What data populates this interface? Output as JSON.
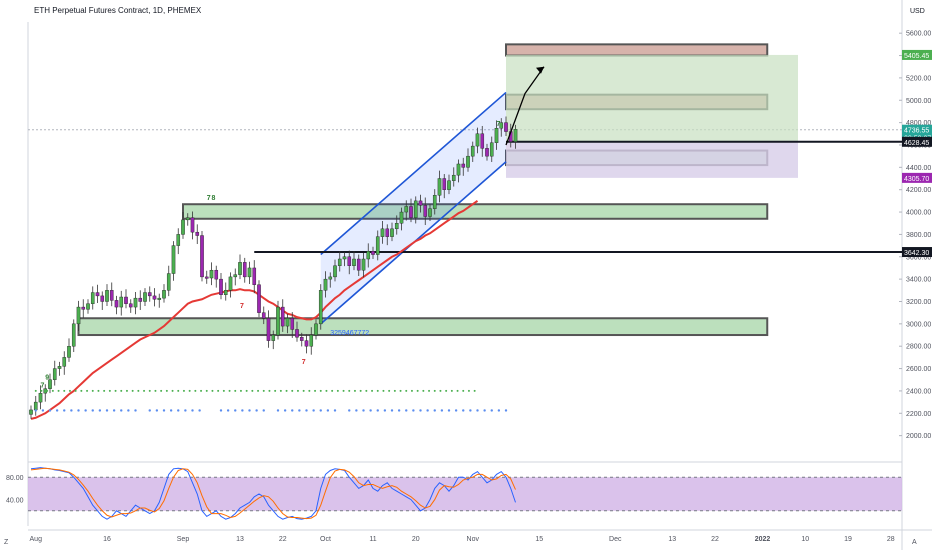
{
  "header": {
    "title": "ETH Perpetual Futures Contract, 1D, PHEMEX",
    "unit": "USD",
    "corner_left": "Z",
    "corner_right": "A"
  },
  "colors": {
    "bull": "#4caf50",
    "bear": "#9c27b0",
    "ma": "#e53935",
    "channel": "#1e56d6",
    "zone_green": "#a5d6a7",
    "zone_red": "#c99a8f",
    "target_fill": "#c8e0c0",
    "stop_fill": "#d7cde8",
    "stoch_band": "#d1b3e6",
    "stoch_k": "#2962ff",
    "stoch_d": "#ff6d00",
    "price_tag": "#26a69a",
    "black_tag": "#131722",
    "purple_tag": "#9c27b0"
  },
  "chart_data": {
    "type": "candlestick",
    "title": "ETH Perpetual Futures Contract, 1D, PHEMEX",
    "y_unit": "USD",
    "ylim": [
      1800,
      5700
    ],
    "y_ticks": [
      2000,
      2200,
      2400,
      2600,
      2800,
      3000,
      3200,
      3400,
      3600,
      3800,
      4000,
      4200,
      4400,
      4600,
      4800,
      5000,
      5200,
      5400,
      5600
    ],
    "y_tick_labels": [
      "2000.00",
      "2200.00",
      "2400.00",
      "2600.00",
      "2800.00",
      "3000.00",
      "3200.00",
      "3400.00",
      "3600.00",
      "3800.00",
      "4000.00",
      "4200.00",
      "4400.00",
      "4600.00",
      "4800.00",
      "5000.00",
      "5200.00",
      "5400.00",
      "5600.00"
    ],
    "x_ticks": [
      {
        "label": "Aug",
        "day": 1
      },
      {
        "label": "16",
        "day": 16
      },
      {
        "label": "Sep",
        "day": 32
      },
      {
        "label": "13",
        "day": 44
      },
      {
        "label": "22",
        "day": 53
      },
      {
        "label": "Oct",
        "day": 62
      },
      {
        "label": "11",
        "day": 72
      },
      {
        "label": "20",
        "day": 81
      },
      {
        "label": "Nov",
        "day": 93
      },
      {
        "label": "15",
        "day": 107
      },
      {
        "label": "Dec",
        "day": 123
      },
      {
        "label": "13",
        "day": 135
      },
      {
        "label": "22",
        "day": 144
      },
      {
        "label": "2022",
        "day": 154
      },
      {
        "label": "10",
        "day": 163
      },
      {
        "label": "19",
        "day": 172
      },
      {
        "label": "28",
        "day": 181
      }
    ],
    "candles_close": [
      2230,
      2300,
      2380,
      2420,
      2500,
      2600,
      2620,
      2700,
      2800,
      3000,
      3150,
      3130,
      3180,
      3280,
      3250,
      3200,
      3300,
      3210,
      3150,
      3240,
      3180,
      3150,
      3230,
      3200,
      3280,
      3250,
      3220,
      3230,
      3300,
      3450,
      3700,
      3800,
      3930,
      3950,
      3820,
      3790,
      3420,
      3410,
      3480,
      3400,
      3260,
      3300,
      3420,
      3440,
      3550,
      3420,
      3500,
      3350,
      3100,
      3050,
      2850,
      2900,
      3150,
      2980,
      3050,
      2950,
      2880,
      2850,
      2800,
      2900,
      3000,
      3300,
      3400,
      3420,
      3520,
      3580,
      3600,
      3520,
      3580,
      3480,
      3580,
      3650,
      3620,
      3780,
      3850,
      3780,
      3850,
      3900,
      4000,
      4050,
      3950,
      4100,
      4060,
      3960,
      4030,
      4150,
      4300,
      4200,
      4280,
      4330,
      4430,
      4400,
      4500,
      4590,
      4700,
      4570,
      4500,
      4620,
      4750,
      4800,
      4720,
      4630,
      4740
    ],
    "moving_average_start_day": 0,
    "moving_average": [
      2150,
      2160,
      2180,
      2200,
      2230,
      2260,
      2290,
      2330,
      2370,
      2400,
      2440,
      2480,
      2520,
      2560,
      2590,
      2620,
      2650,
      2680,
      2710,
      2740,
      2770,
      2800,
      2830,
      2860,
      2880,
      2900,
      2920,
      2950,
      2980,
      3020,
      3060,
      3100,
      3140,
      3180,
      3200,
      3210,
      3220,
      3240,
      3260,
      3270,
      3280,
      3290,
      3300,
      3300,
      3310,
      3300,
      3300,
      3290,
      3260,
      3230,
      3200,
      3180,
      3150,
      3120,
      3090,
      3080,
      3060,
      3050,
      3040,
      3040,
      3060,
      3100,
      3150,
      3190,
      3230,
      3260,
      3300,
      3330,
      3360,
      3390,
      3420,
      3450,
      3480,
      3510,
      3540,
      3570,
      3600,
      3620,
      3650,
      3680,
      3710,
      3740,
      3760,
      3790,
      3810,
      3840,
      3870,
      3900,
      3930,
      3960,
      3990,
      4010,
      4040,
      4070,
      4100
    ],
    "zones": [
      {
        "kind": "support",
        "from_day": 32,
        "to_day": 155,
        "low": 3940,
        "high": 4070
      },
      {
        "kind": "support",
        "from_day": 10,
        "to_day": 155,
        "low": 2900,
        "high": 3050
      },
      {
        "kind": "resistance",
        "from_day": 100,
        "to_day": 155,
        "low": 4920,
        "high": 5050
      },
      {
        "kind": "resistance",
        "from_day": 100,
        "to_day": 155,
        "low": 5400,
        "high": 5500
      },
      {
        "kind": "pivot",
        "from_day": 100,
        "to_day": 155,
        "low": 4420,
        "high": 4550
      }
    ],
    "horizontal_lines": [
      {
        "price": 4628.45,
        "from_day": 100,
        "label": "4628.45"
      },
      {
        "price": 3642.3,
        "from_day": 47,
        "label": "3642.30"
      }
    ],
    "position_tool": {
      "entry": 4628.45,
      "target": 5405.45,
      "stop": 4305.7
    },
    "price_labels": [
      {
        "value": "5405.45",
        "price": 5405.45,
        "style": "green"
      },
      {
        "value": "4736.55",
        "sub": "08:58:07",
        "price": 4736.55,
        "style": "price"
      },
      {
        "value": "4628.45",
        "price": 4628.45,
        "style": "black"
      },
      {
        "value": "4305.70",
        "price": 4305.7,
        "style": "purple"
      },
      {
        "value": "3642.30",
        "price": 3642.3,
        "style": "black"
      }
    ],
    "channel": {
      "lower": [
        [
          61,
          3000
        ],
        [
          100,
          4450
        ]
      ],
      "upper": [
        [
          61,
          3620
        ],
        [
          100,
          5070
        ]
      ]
    },
    "projection_arrow": [
      [
        100,
        4600
      ],
      [
        104,
        5060
      ],
      [
        108,
        5300
      ]
    ],
    "annotations": [
      {
        "text": "7",
        "day": 37,
        "price": 4110
      },
      {
        "text": "8",
        "day": 38,
        "price": 4110
      },
      {
        "text": "7",
        "day": 98,
        "price": 4770
      },
      {
        "text": "7",
        "day": 44,
        "price": 3140
      },
      {
        "text": "7",
        "day": 57,
        "price": 2640
      },
      {
        "text": "9",
        "day": 3,
        "price": 2500
      },
      {
        "text": "7",
        "day": 2,
        "price": 2430
      }
    ],
    "overlay_text": "3259467772",
    "stochastic": {
      "ylim": [
        0,
        100
      ],
      "y_ticks": [
        80,
        40
      ],
      "y_tick_labels": [
        "80.00",
        "40.00"
      ],
      "band": [
        20,
        80
      ],
      "k": [
        95,
        96,
        97,
        96,
        95,
        93,
        92,
        90,
        88,
        80,
        70,
        60,
        45,
        30,
        20,
        10,
        5,
        10,
        20,
        15,
        10,
        20,
        30,
        25,
        20,
        15,
        20,
        35,
        60,
        85,
        95,
        96,
        95,
        90,
        70,
        50,
        20,
        10,
        15,
        20,
        10,
        5,
        8,
        15,
        25,
        30,
        35,
        45,
        50,
        45,
        30,
        20,
        10,
        5,
        8,
        10,
        6,
        5,
        7,
        10,
        20,
        60,
        85,
        92,
        95,
        94,
        92,
        80,
        70,
        60,
        65,
        75,
        60,
        55,
        65,
        70,
        60,
        55,
        50,
        45,
        40,
        30,
        20,
        25,
        40,
        60,
        70,
        65,
        55,
        65,
        80,
        80,
        75,
        85,
        90,
        80,
        70,
        75,
        85,
        90,
        80,
        60,
        35
      ],
      "d": [
        93,
        94,
        95,
        96,
        95,
        94,
        93,
        91,
        89,
        84,
        76,
        66,
        55,
        42,
        30,
        20,
        12,
        9,
        12,
        15,
        15,
        16,
        20,
        25,
        25,
        21,
        18,
        24,
        38,
        60,
        80,
        92,
        95,
        94,
        85,
        70,
        47,
        27,
        15,
        15,
        15,
        12,
        8,
        10,
        16,
        23,
        30,
        37,
        43,
        47,
        45,
        37,
        25,
        15,
        9,
        8,
        8,
        7,
        6,
        7,
        12,
        30,
        55,
        79,
        91,
        94,
        93,
        89,
        81,
        70,
        65,
        67,
        67,
        63,
        60,
        63,
        65,
        62,
        55,
        50,
        45,
        38,
        30,
        25,
        28,
        40,
        57,
        65,
        63,
        62,
        67,
        75,
        78,
        80,
        85,
        85,
        80,
        75,
        77,
        83,
        85,
        77,
        58
      ]
    }
  }
}
